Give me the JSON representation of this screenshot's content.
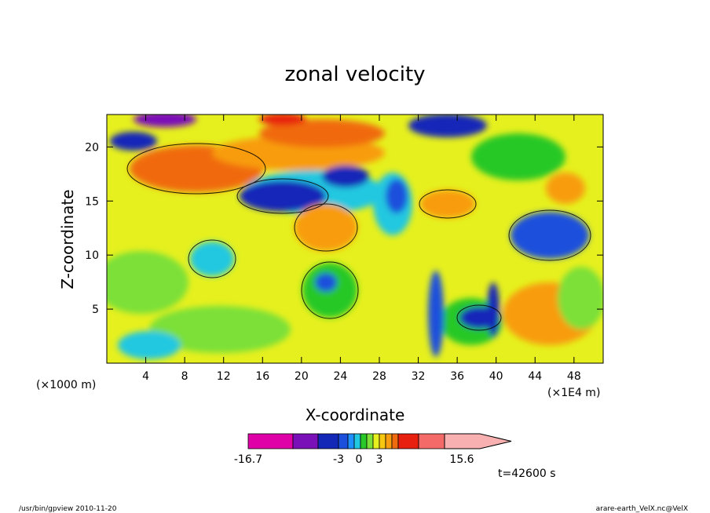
{
  "chart_data": {
    "type": "heatmap",
    "title": "zonal velocity",
    "xlabel": "X-coordinate",
    "ylabel": "Z-coordinate",
    "x_unit_left": "(×1000 m)",
    "x_unit_right": "(×1E4 m)",
    "xlim": [
      0,
      51
    ],
    "ylim": [
      0,
      23
    ],
    "x_ticks": [
      4,
      8,
      12,
      16,
      20,
      24,
      28,
      32,
      36,
      40,
      44,
      48
    ],
    "y_ticks": [
      5,
      10,
      15,
      20
    ],
    "colorbar": {
      "levels_colors": [
        "#e000a8",
        "#7a10b8",
        "#1428b8",
        "#1c50dc",
        "#1e90ff",
        "#22c8e0",
        "#28c828",
        "#7ce038",
        "#e6f01e",
        "#f8c810",
        "#f89c10",
        "#f06a10",
        "#e82010",
        "#f46a68",
        "#f8b0b0"
      ],
      "tick_labels": [
        "-16.7",
        "-3",
        "0",
        "3",
        "15.6"
      ],
      "min": -16.7,
      "max": 15.6
    },
    "time_label": "t=42600 s",
    "footer_left": "/usr/bin/gpview   2010-11-20",
    "footer_right": "arare-earth_VelX.nc@VelX"
  }
}
